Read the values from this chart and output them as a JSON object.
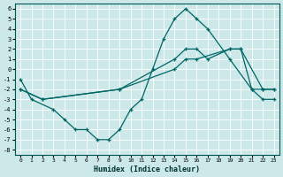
{
  "xlabel": "Humidex (Indice chaleur)",
  "bg_color": "#cce8e8",
  "line_color": "#006666",
  "grid_color": "#ffffff",
  "xlim": [
    -0.5,
    23.5
  ],
  "ylim": [
    -8.5,
    6.5
  ],
  "xticks": [
    0,
    1,
    2,
    3,
    4,
    5,
    6,
    7,
    8,
    9,
    10,
    11,
    12,
    13,
    14,
    15,
    16,
    17,
    18,
    19,
    20,
    21,
    22,
    23
  ],
  "yticks": [
    -8,
    -7,
    -6,
    -5,
    -4,
    -3,
    -2,
    -1,
    0,
    1,
    2,
    3,
    4,
    5,
    6
  ],
  "line1_x": [
    0,
    1,
    3,
    4,
    5,
    6,
    7,
    8,
    9,
    10,
    11,
    12,
    13,
    14,
    15,
    16,
    17,
    19,
    21,
    22,
    23
  ],
  "line1_y": [
    -1,
    -3,
    -4,
    -5,
    -6,
    -6,
    -7,
    -7,
    -6,
    -4,
    -3,
    0,
    3,
    5,
    6,
    5,
    4,
    1,
    -2,
    -3,
    -3
  ],
  "line2_x": [
    0,
    2,
    9,
    14,
    15,
    16,
    17,
    19,
    20,
    21,
    22,
    23
  ],
  "line2_y": [
    -2,
    -3,
    -2,
    1,
    2,
    2,
    1,
    2,
    2,
    -2,
    -2,
    -2
  ],
  "line3_x": [
    0,
    2,
    9,
    14,
    15,
    16,
    19,
    20,
    22,
    23
  ],
  "line3_y": [
    -2,
    -3,
    -2,
    0,
    1,
    1,
    2,
    2,
    -2,
    -2
  ]
}
